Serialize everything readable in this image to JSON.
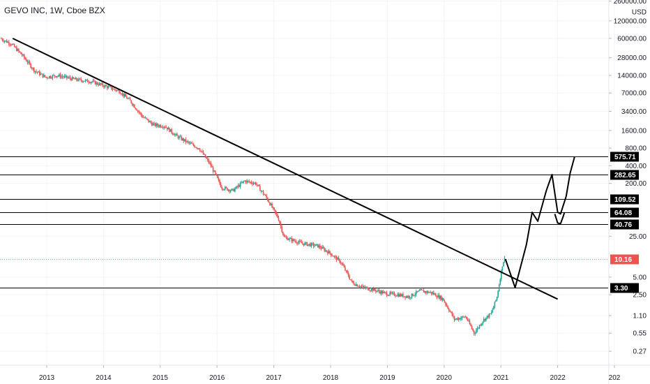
{
  "header": {
    "title": "GEVO INC, 1W, Cboe BZX",
    "currency": "USD"
  },
  "colors": {
    "up": "#26a69a",
    "down": "#ef5350",
    "trendline": "#000000",
    "level_line": "#000000",
    "level_label_bg": "#000000",
    "last_price_bg": "#ef5350",
    "axis_text": "#131722"
  },
  "chart_data": {
    "type": "candlestick",
    "title": "GEVO INC, 1W, Cboe BZX",
    "yscale": "log",
    "ylim": [
      0.2,
      300000
    ],
    "xlim": [
      2012.2,
      2022.0
    ],
    "x_ticks": [
      "2013",
      "2014",
      "2015",
      "2016",
      "2017",
      "2018",
      "2019",
      "2020",
      "2021",
      "2022",
      "202"
    ],
    "y_ticks": [
      {
        "label": "260000.00",
        "value": 260000
      },
      {
        "label": "USD",
        "value": 170000
      },
      {
        "label": "120000.00",
        "value": 120000
      },
      {
        "label": "60000.00",
        "value": 60000
      },
      {
        "label": "28000.00",
        "value": 28000
      },
      {
        "label": "14000.00",
        "value": 14000
      },
      {
        "label": "7000.00",
        "value": 7000
      },
      {
        "label": "3400.00",
        "value": 3400
      },
      {
        "label": "1600.00",
        "value": 1600
      },
      {
        "label": "800.00",
        "value": 800
      },
      {
        "label": "400.00",
        "value": 400
      },
      {
        "label": "200.00",
        "value": 200
      },
      {
        "label": "25.00",
        "value": 25
      },
      {
        "label": "5.00",
        "value": 5
      },
      {
        "label": "2.50",
        "value": 2.5
      },
      {
        "label": "1.10",
        "value": 1.1
      },
      {
        "label": "0.55",
        "value": 0.55
      },
      {
        "label": "0.27",
        "value": 0.27
      }
    ],
    "levels": [
      {
        "label": "575.71",
        "value": 575.71
      },
      {
        "label": "282.65",
        "value": 282.65
      },
      {
        "label": "109.52",
        "value": 109.52
      },
      {
        "label": "64.08",
        "value": 64.08
      },
      {
        "label": "40.76",
        "value": 40.76
      },
      {
        "label": "3.30",
        "value": 3.3
      }
    ],
    "last_price": {
      "label": "10.16",
      "value": 10.16
    },
    "price_path": [
      [
        2012.2,
        60000
      ],
      [
        2012.4,
        48000
      ],
      [
        2012.6,
        30000
      ],
      [
        2012.8,
        17000
      ],
      [
        2013.0,
        13000
      ],
      [
        2013.2,
        14000
      ],
      [
        2013.5,
        12000
      ],
      [
        2013.8,
        11000
      ],
      [
        2014.0,
        9500
      ],
      [
        2014.3,
        7500
      ],
      [
        2014.5,
        5000
      ],
      [
        2014.7,
        2800
      ],
      [
        2014.9,
        2000
      ],
      [
        2015.1,
        1900
      ],
      [
        2015.3,
        1300
      ],
      [
        2015.5,
        1000
      ],
      [
        2015.7,
        800
      ],
      [
        2015.9,
        420
      ],
      [
        2016.1,
        170
      ],
      [
        2016.3,
        150
      ],
      [
        2016.5,
        220
      ],
      [
        2016.7,
        200
      ],
      [
        2016.9,
        110
      ],
      [
        2017.1,
        50
      ],
      [
        2017.2,
        24
      ],
      [
        2017.5,
        19
      ],
      [
        2017.8,
        17
      ],
      [
        2018.0,
        13
      ],
      [
        2018.2,
        9
      ],
      [
        2018.4,
        4
      ],
      [
        2018.6,
        3.3
      ],
      [
        2018.8,
        3.0
      ],
      [
        2019.0,
        2.6
      ],
      [
        2019.2,
        2.5
      ],
      [
        2019.4,
        2.3
      ],
      [
        2019.6,
        2.9
      ],
      [
        2019.8,
        2.7
      ],
      [
        2020.0,
        2.1
      ],
      [
        2020.2,
        0.95
      ],
      [
        2020.4,
        1.05
      ],
      [
        2020.55,
        0.55
      ],
      [
        2020.7,
        0.9
      ],
      [
        2020.85,
        1.2
      ],
      [
        2020.95,
        2.3
      ],
      [
        2021.05,
        8.5
      ],
      [
        2021.08,
        10.16
      ]
    ],
    "trendline": {
      "from": [
        2012.4,
        60000
      ],
      "to": [
        2022.0,
        2.1
      ]
    },
    "projection": [
      [
        2021.08,
        10.16
      ],
      [
        2021.25,
        3.3
      ],
      [
        2021.45,
        18
      ],
      [
        2021.55,
        64
      ],
      [
        2021.65,
        45
      ],
      [
        2021.8,
        150
      ],
      [
        2021.9,
        282.65
      ],
      [
        2022.0,
        64.08
      ],
      [
        2022.05,
        60
      ],
      [
        2022.15,
        120
      ],
      [
        2022.22,
        300
      ],
      [
        2022.3,
        575.71
      ]
    ],
    "projection_alt": [
      [
        2021.95,
        60
      ],
      [
        2022.0,
        42
      ],
      [
        2022.05,
        40.76
      ],
      [
        2022.1,
        55
      ],
      [
        2022.12,
        64.08
      ]
    ]
  }
}
